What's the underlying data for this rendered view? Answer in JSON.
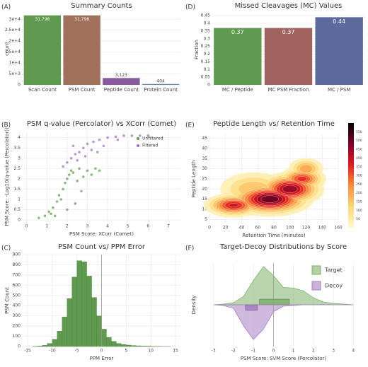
{
  "chart_data": [
    {
      "panel": "(A)",
      "type": "bar",
      "title": "Summary Counts",
      "y_label": "count",
      "categories": [
        "Scan Count",
        "PSM Count",
        "Peptide Count",
        "Protein Count"
      ],
      "values": [
        31798,
        31798,
        3123,
        404
      ],
      "value_labels": [
        "31,798",
        "31,798",
        "3,123",
        "404"
      ],
      "colors": [
        "#5f9a4f",
        "#a0705a",
        "#8a5a9e",
        "#6a8bb5"
      ],
      "ylim": [
        0,
        33000
      ],
      "yticks": [
        0,
        {
          "value": 5000,
          "label": "5e+3"
        },
        {
          "value": 10000,
          "label": "1e+4"
        },
        {
          "value": 15000,
          "label": "1.5e+4"
        },
        {
          "value": 20000,
          "label": "2e+4"
        },
        {
          "value": 25000,
          "label": "2.5e+4"
        },
        {
          "value": 30000,
          "label": "3e+4"
        }
      ],
      "grid": true
    },
    {
      "panel": "(B)",
      "type": "scatter",
      "title": "PSM q-value (Percolator) vs XCorr (Comet)",
      "x_label": "PSM Score: XCorr (Comet)",
      "y_label": "PSM Score: -Log10(q-value (Percolator))",
      "series": [
        {
          "name": "Unfiltered",
          "color": "#5f9a4f",
          "x": [
            0.6,
            0.9,
            1.1,
            1.3,
            1.5,
            1.6,
            1.8,
            1.9,
            2.0,
            2.1,
            2.2,
            2.3,
            2.5,
            2.6,
            2.8,
            3.0,
            3.2,
            3.4,
            1.2,
            1.7,
            2.4,
            1.4,
            2.0,
            2.7,
            3.6
          ],
          "values": [
            0.1,
            0.2,
            0.4,
            0.6,
            0.9,
            1.2,
            1.5,
            1.8,
            2.0,
            2.2,
            2.4,
            2.3,
            1.9,
            2.5,
            2.1,
            2.4,
            2.2,
            2.5,
            0.3,
            1.0,
            0.8,
            0.2,
            0.5,
            1.4,
            2.4
          ]
        },
        {
          "name": "Filtered",
          "color": "#9b6fc0",
          "x": [
            1.8,
            2.0,
            2.2,
            2.4,
            2.6,
            2.8,
            3.0,
            3.3,
            3.6,
            4.0,
            4.4,
            4.8,
            5.2,
            5.6,
            6.0,
            2.5,
            3.2,
            3.8,
            4.5,
            2.3,
            2.9,
            3.5
          ],
          "values": [
            2.6,
            2.8,
            3.0,
            3.2,
            3.3,
            3.5,
            3.7,
            3.8,
            3.9,
            4.0,
            4.05,
            4.1,
            4.1,
            4.1,
            4.1,
            2.9,
            3.4,
            3.6,
            3.9,
            3.6,
            3.1,
            3.3
          ]
        }
      ],
      "xlim": [
        -0.2,
        7.6
      ],
      "xticks": [
        0,
        1,
        2,
        3,
        4,
        5,
        6,
        7
      ],
      "ylim": [
        -0.1,
        4.3
      ],
      "yticks": [
        0,
        0.5,
        1,
        1.5,
        2,
        2.5,
        3,
        3.5,
        4
      ],
      "grid": true,
      "legend": "top-right"
    },
    {
      "panel": "(C)",
      "type": "histogram",
      "title": "PSM Count vs/ PPM Error",
      "x_label": "PPM Error",
      "y_label": "PSM Count",
      "bins": [
        -15,
        -14,
        -13,
        -12,
        -11,
        -10,
        -9,
        -8,
        -7,
        -6,
        -5,
        -4,
        -3,
        -2,
        -1,
        0,
        1,
        2,
        3,
        4,
        5,
        6,
        7,
        8,
        9,
        10,
        11,
        12,
        13,
        14,
        15
      ],
      "values": [
        0,
        2,
        5,
        12,
        30,
        70,
        150,
        290,
        470,
        680,
        840,
        830,
        690,
        480,
        300,
        170,
        90,
        50,
        30,
        20,
        14,
        10,
        7,
        5,
        4,
        3,
        2,
        1,
        1,
        0
      ],
      "color": "#5f9a4f",
      "vline": 0,
      "xlim": [
        -16,
        16
      ],
      "xticks": [
        -15,
        -10,
        -5,
        0,
        5,
        10,
        15
      ],
      "ylim": [
        0,
        900
      ],
      "yticks": [
        0,
        100,
        200,
        300,
        400,
        500,
        600,
        700,
        800,
        900
      ],
      "grid": true
    },
    {
      "panel": "(D)",
      "type": "bar",
      "title": "Missed Cleavages (MC) Values",
      "y_label": "Fraction",
      "categories": [
        "MC / Peptide",
        "MC PSM Fraction",
        "MC / PSM"
      ],
      "values": [
        0.37,
        0.37,
        0.44
      ],
      "colors": [
        "#5f9a4f",
        "#a0625e",
        "#5b6a9a"
      ],
      "ylim": [
        0,
        0.46
      ],
      "yticks": [
        0,
        0.05,
        0.1,
        0.15,
        0.2,
        0.25,
        0.3,
        0.35,
        0.4,
        0.45
      ],
      "grid": true
    },
    {
      "panel": "(E)",
      "type": "contour",
      "title": "Peptide Length vs/ Retention Time",
      "x_label": "Retention Time (minutes)",
      "y_label": "Peptide Length",
      "blobs": [
        {
          "x": 30,
          "y": 12,
          "rx": 18,
          "ry": 3,
          "level": 420
        },
        {
          "x": 75,
          "y": 15,
          "rx": 25,
          "ry": 4,
          "level": 550
        },
        {
          "x": 100,
          "y": 20,
          "rx": 20,
          "ry": 4,
          "level": 500
        },
        {
          "x": 115,
          "y": 25,
          "rx": 15,
          "ry": 3,
          "level": 380
        },
        {
          "x": 55,
          "y": 20,
          "rx": 25,
          "ry": 5,
          "level": 200
        },
        {
          "x": 120,
          "y": 30,
          "rx": 12,
          "ry": 3,
          "level": 250
        }
      ],
      "colorscale": [
        "#fffbd0",
        "#fed976",
        "#fd8d3c",
        "#e31a1c",
        "#800026",
        "#000000"
      ],
      "clim": [
        0,
        600
      ],
      "cticks": [
        50,
        100,
        150,
        200,
        250,
        300,
        350,
        400,
        450,
        500,
        550
      ],
      "xlim": [
        0,
        160
      ],
      "xticks": [
        0,
        20,
        40,
        60,
        80,
        100,
        120,
        140,
        160
      ],
      "ylim": [
        3,
        47
      ],
      "yticks": [
        5,
        10,
        15,
        20,
        25,
        30,
        35,
        40,
        45
      ],
      "grid": true
    },
    {
      "panel": "(F)",
      "type": "density",
      "title": "Target-Decoy Distributions by Score",
      "x_label": "PSM Score: SVM Score (Percolator)",
      "y_label": "Density",
      "x": [
        -3,
        -2.5,
        -2,
        -1.5,
        -1,
        -0.5,
        0,
        0.5,
        1,
        1.5,
        2,
        2.5,
        3,
        3.5,
        4
      ],
      "series": [
        {
          "name": "Target",
          "color": "#7fb36b",
          "values": [
            0,
            0.01,
            0.03,
            0.12,
            0.35,
            0.55,
            0.42,
            0.25,
            0.24,
            0.2,
            0.1,
            0.04,
            0.02,
            0.01,
            0
          ],
          "box": [
            -0.7,
            0.8
          ]
        },
        {
          "name": "Decoy",
          "color": "#a77fc2",
          "values": [
            0,
            0.01,
            0.05,
            0.3,
            0.5,
            0.35,
            0.1,
            0.02,
            0.01,
            0,
            0,
            0,
            0,
            0,
            0
          ],
          "box": [
            -1.4,
            -0.8
          ]
        }
      ],
      "vline": 0,
      "xlim": [
        -3.2,
        4.2
      ],
      "xticks": [
        -3,
        -2,
        -1,
        0,
        1,
        2,
        3,
        4
      ],
      "ylim": [
        -0.6,
        0.6
      ],
      "grid": true,
      "legend": "top-right"
    }
  ]
}
